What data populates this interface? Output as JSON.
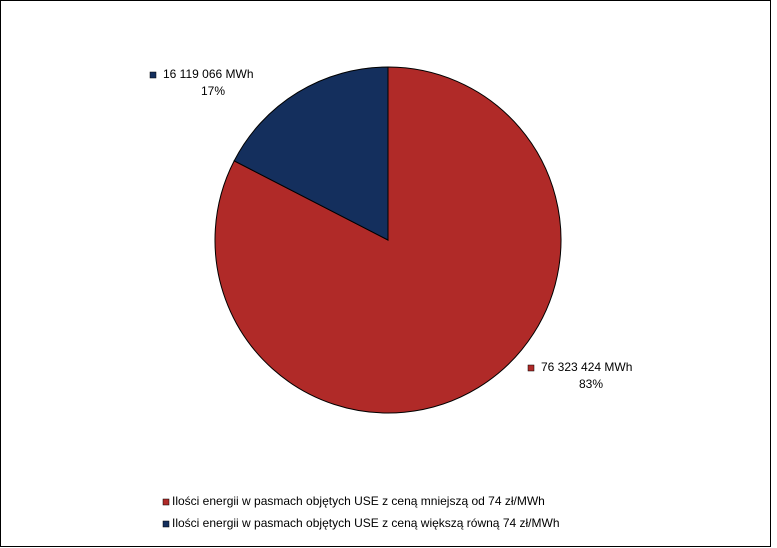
{
  "chart_data": {
    "type": "pie",
    "categories": [
      "Ilości energii w pasmach objętych USE z ceną mniejszą od 74 zł/MWh",
      "Ilości energii w pasmach objętych USE z ceną większą równą 74 zł/MWh"
    ],
    "values": [
      76323424,
      16119066
    ],
    "value_labels": [
      "76 323 424 MWh",
      "16 119 066 MWh"
    ],
    "percent_labels": [
      "83%",
      "17%"
    ],
    "colors": [
      "#b02a28",
      "#142f5d"
    ]
  }
}
